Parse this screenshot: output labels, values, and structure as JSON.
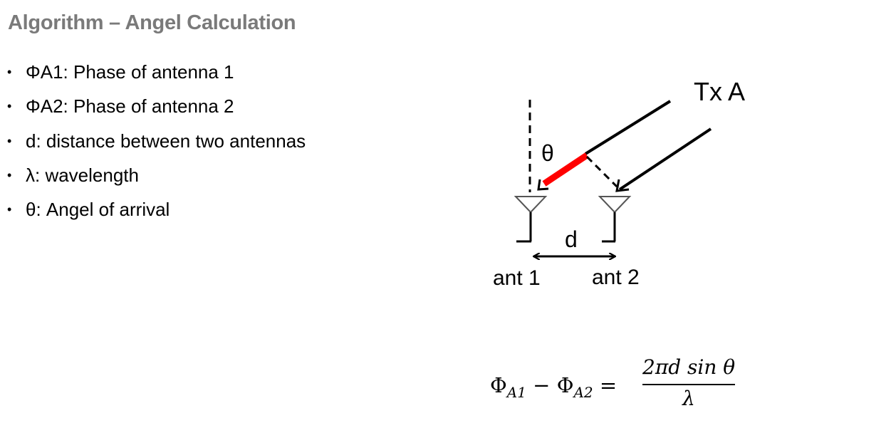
{
  "slide": {
    "title": "Algorithm – Angel Calculation",
    "bullets": [
      {
        "text": "ΦA1:  Phase of antenna 1"
      },
      {
        "text": "ΦA2: Phase of antenna 2"
      },
      {
        "text": "d: distance between two antennas"
      },
      {
        "text": "λ: wavelength"
      },
      {
        "text": "θ: Angel of arrival"
      }
    ],
    "bullet_glyph": "•"
  },
  "diagram": {
    "transmitter_label": "Tx A",
    "theta_label": "θ",
    "distance_label": "d",
    "antenna_1_label": "ant 1",
    "antenna_2_label": "ant 2",
    "highlight_color": "#ff0000",
    "line_color": "#000000"
  },
  "equation": {
    "lhs_phi": "Φ",
    "lhs_sub_1": "A1",
    "minus": " − ",
    "lhs_sub_2": "A2",
    "equals": " = ",
    "numerator": "2πd sin θ",
    "denominator": "λ"
  }
}
